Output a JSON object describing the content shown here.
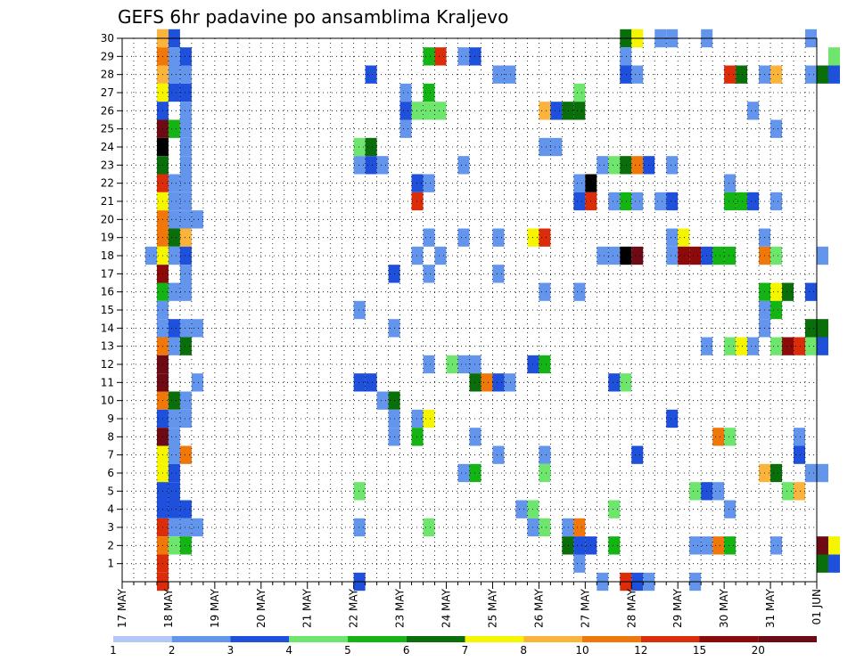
{
  "chart_data": {
    "type": "heatmap",
    "title": "GEFS 6hr padavine po ansamblima Kraljevo",
    "xlabel": "",
    "ylabel": "",
    "x_labels": [
      "17 MAY",
      "18 MAY",
      "19 MAY",
      "20 MAY",
      "21 MAY",
      "22 MAY",
      "23 MAY",
      "24 MAY",
      "25 MAY",
      "26 MAY",
      "27 MAY",
      "28 MAY",
      "29 MAY",
      "30 MAY",
      "31 MAY",
      "01 JUN"
    ],
    "x_range": [
      "2024-05-17T00:00",
      "2024-06-01T00:00"
    ],
    "time_step_hours": 6,
    "y_labels": [
      "1",
      "2",
      "3",
      "4",
      "5",
      "6",
      "7",
      "8",
      "9",
      "10",
      "11",
      "12",
      "13",
      "14",
      "15",
      "16",
      "17",
      "18",
      "19",
      "20",
      "21",
      "22",
      "23",
      "24",
      "25",
      "26",
      "27",
      "28",
      "29",
      "30"
    ],
    "ylim": [
      0,
      30
    ],
    "grid": true,
    "color_scale": {
      "levels": [
        "1",
        "2",
        "3",
        "4",
        "5",
        "6",
        "7",
        "8",
        "10",
        "12",
        "15",
        "20"
      ],
      "colors": [
        "#b4c8f5",
        "#6495ed",
        "#1e50dc",
        "#6ee66e",
        "#14b414",
        "#0a6e0a",
        "#f5f500",
        "#fab43c",
        "#f0780a",
        "#dc2d0a",
        "#8c0a0a",
        "#6e0a14"
      ]
    },
    "cells": [
      [
        "2024-05-17T18:00",
        30,
        7
      ],
      [
        "2024-05-17T18:00",
        29,
        8
      ],
      [
        "2024-05-17T18:00",
        28,
        7
      ],
      [
        "2024-05-17T18:00",
        27,
        6
      ],
      [
        "2024-05-17T18:00",
        26,
        2
      ],
      [
        "2024-05-17T18:00",
        25,
        11
      ],
      [
        "2024-05-17T18:00",
        24,
        12
      ],
      [
        "2024-05-17T18:00",
        23,
        5
      ],
      [
        "2024-05-17T18:00",
        22,
        9
      ],
      [
        "2024-05-17T18:00",
        21,
        6
      ],
      [
        "2024-05-17T18:00",
        20,
        8
      ],
      [
        "2024-05-17T18:00",
        19,
        8
      ],
      [
        "2024-05-17T18:00",
        18,
        6
      ],
      [
        "2024-05-17T18:00",
        17,
        10
      ],
      [
        "2024-05-17T18:00",
        16,
        4
      ],
      [
        "2024-05-17T18:00",
        15,
        1
      ],
      [
        "2024-05-17T18:00",
        14,
        1
      ],
      [
        "2024-05-17T18:00",
        13,
        8
      ],
      [
        "2024-05-17T18:00",
        12,
        11
      ],
      [
        "2024-05-17T18:00",
        11,
        11
      ],
      [
        "2024-05-17T18:00",
        10,
        8
      ],
      [
        "2024-05-17T18:00",
        9,
        2
      ],
      [
        "2024-05-17T18:00",
        8,
        11
      ],
      [
        "2024-05-17T18:00",
        7,
        6
      ],
      [
        "2024-05-17T18:00",
        6,
        6
      ],
      [
        "2024-05-17T18:00",
        5,
        2
      ],
      [
        "2024-05-17T18:00",
        4,
        2
      ],
      [
        "2024-05-17T18:00",
        3,
        9
      ],
      [
        "2024-05-17T18:00",
        2,
        8
      ],
      [
        "2024-05-17T18:00",
        1,
        9
      ],
      [
        "2024-05-17T18:00",
        0,
        9
      ],
      [
        "2024-05-17T12:00",
        18,
        1
      ],
      [
        "2024-05-18T00:00",
        30,
        2
      ],
      [
        "2024-05-18T00:00",
        29,
        1
      ],
      [
        "2024-05-18T00:00",
        28,
        1
      ],
      [
        "2024-05-18T00:00",
        27,
        2
      ],
      [
        "2024-05-18T00:00",
        25,
        4
      ],
      [
        "2024-05-18T00:00",
        22,
        1
      ],
      [
        "2024-05-18T00:00",
        21,
        1
      ],
      [
        "2024-05-18T00:00",
        20,
        1
      ],
      [
        "2024-05-18T00:00",
        19,
        5
      ],
      [
        "2024-05-18T00:00",
        18,
        1
      ],
      [
        "2024-05-18T00:00",
        16,
        1
      ],
      [
        "2024-05-18T00:00",
        14,
        2
      ],
      [
        "2024-05-18T00:00",
        13,
        1
      ],
      [
        "2024-05-18T00:00",
        10,
        5
      ],
      [
        "2024-05-18T00:00",
        9,
        1
      ],
      [
        "2024-05-18T00:00",
        8,
        1
      ],
      [
        "2024-05-18T00:00",
        7,
        1
      ],
      [
        "2024-05-18T00:00",
        6,
        2
      ],
      [
        "2024-05-18T00:00",
        5,
        2
      ],
      [
        "2024-05-18T00:00",
        4,
        2
      ],
      [
        "2024-05-18T00:00",
        3,
        1
      ],
      [
        "2024-05-18T00:00",
        2,
        3
      ],
      [
        "2024-05-18T06:00",
        29,
        2
      ],
      [
        "2024-05-18T06:00",
        28,
        1
      ],
      [
        "2024-05-18T06:00",
        27,
        2
      ],
      [
        "2024-05-18T06:00",
        26,
        1
      ],
      [
        "2024-05-18T06:00",
        25,
        1
      ],
      [
        "2024-05-18T06:00",
        24,
        1
      ],
      [
        "2024-05-18T06:00",
        23,
        1
      ],
      [
        "2024-05-18T06:00",
        22,
        1
      ],
      [
        "2024-05-18T06:00",
        21,
        1
      ],
      [
        "2024-05-18T06:00",
        20,
        1
      ],
      [
        "2024-05-18T06:00",
        19,
        7
      ],
      [
        "2024-05-18T06:00",
        18,
        2
      ],
      [
        "2024-05-18T06:00",
        17,
        1
      ],
      [
        "2024-05-18T06:00",
        16,
        1
      ],
      [
        "2024-05-18T06:00",
        14,
        1
      ],
      [
        "2024-05-18T06:00",
        13,
        5
      ],
      [
        "2024-05-18T06:00",
        10,
        1
      ],
      [
        "2024-05-18T06:00",
        9,
        1
      ],
      [
        "2024-05-18T06:00",
        7,
        8
      ],
      [
        "2024-05-18T06:00",
        4,
        2
      ],
      [
        "2024-05-18T06:00",
        3,
        1
      ],
      [
        "2024-05-18T06:00",
        2,
        4
      ],
      [
        "2024-05-18T12:00",
        20,
        1
      ],
      [
        "2024-05-18T12:00",
        14,
        1
      ],
      [
        "2024-05-18T12:00",
        11,
        1
      ],
      [
        "2024-05-18T12:00",
        3,
        1
      ],
      [
        "2024-05-22T00:00",
        24,
        3
      ],
      [
        "2024-05-22T00:00",
        23,
        1
      ],
      [
        "2024-05-22T00:00",
        15,
        1
      ],
      [
        "2024-05-22T00:00",
        11,
        2
      ],
      [
        "2024-05-22T00:00",
        5,
        3
      ],
      [
        "2024-05-22T00:00",
        3,
        1
      ],
      [
        "2024-05-22T00:00",
        0,
        2
      ],
      [
        "2024-05-22T06:00",
        28,
        2
      ],
      [
        "2024-05-22T06:00",
        24,
        5
      ],
      [
        "2024-05-22T06:00",
        23,
        2
      ],
      [
        "2024-05-22T06:00",
        11,
        2
      ],
      [
        "2024-05-22T12:00",
        23,
        1
      ],
      [
        "2024-05-22T12:00",
        10,
        1
      ],
      [
        "2024-05-22T18:00",
        17,
        2
      ],
      [
        "2024-05-22T18:00",
        14,
        1
      ],
      [
        "2024-05-22T18:00",
        10,
        5
      ],
      [
        "2024-05-22T18:00",
        9,
        1
      ],
      [
        "2024-05-22T18:00",
        8,
        1
      ],
      [
        "2024-05-23T00:00",
        27,
        1
      ],
      [
        "2024-05-23T00:00",
        26,
        2
      ],
      [
        "2024-05-23T00:00",
        25,
        1
      ],
      [
        "2024-05-23T06:00",
        26,
        3
      ],
      [
        "2024-05-23T06:00",
        22,
        2
      ],
      [
        "2024-05-23T06:00",
        21,
        9
      ],
      [
        "2024-05-23T06:00",
        18,
        1
      ],
      [
        "2024-05-23T06:00",
        9,
        1
      ],
      [
        "2024-05-23T06:00",
        8,
        4
      ],
      [
        "2024-05-23T12:00",
        29,
        4
      ],
      [
        "2024-05-23T12:00",
        27,
        4
      ],
      [
        "2024-05-23T12:00",
        26,
        3
      ],
      [
        "2024-05-23T12:00",
        22,
        1
      ],
      [
        "2024-05-23T12:00",
        19,
        1
      ],
      [
        "2024-05-23T12:00",
        17,
        1
      ],
      [
        "2024-05-23T12:00",
        12,
        1
      ],
      [
        "2024-05-23T12:00",
        9,
        6
      ],
      [
        "2024-05-23T12:00",
        3,
        3
      ],
      [
        "2024-05-23T18:00",
        29,
        9
      ],
      [
        "2024-05-23T18:00",
        26,
        3
      ],
      [
        "2024-05-23T18:00",
        18,
        1
      ],
      [
        "2024-05-24T00:00",
        12,
        3
      ],
      [
        "2024-05-24T06:00",
        29,
        1
      ],
      [
        "2024-05-24T06:00",
        23,
        1
      ],
      [
        "2024-05-24T06:00",
        19,
        1
      ],
      [
        "2024-05-24T06:00",
        12,
        1
      ],
      [
        "2024-05-24T06:00",
        6,
        1
      ],
      [
        "2024-05-24T12:00",
        29,
        2
      ],
      [
        "2024-05-24T12:00",
        12,
        1
      ],
      [
        "2024-05-24T12:00",
        11,
        5
      ],
      [
        "2024-05-24T12:00",
        8,
        1
      ],
      [
        "2024-05-24T12:00",
        6,
        4
      ],
      [
        "2024-05-24T18:00",
        11,
        8
      ],
      [
        "2024-05-25T00:00",
        28,
        1
      ],
      [
        "2024-05-25T00:00",
        19,
        1
      ],
      [
        "2024-05-25T00:00",
        17,
        1
      ],
      [
        "2024-05-25T00:00",
        11,
        2
      ],
      [
        "2024-05-25T00:00",
        7,
        1
      ],
      [
        "2024-05-25T06:00",
        28,
        1
      ],
      [
        "2024-05-25T06:00",
        11,
        1
      ],
      [
        "2024-05-25T12:00",
        4,
        1
      ],
      [
        "2024-05-25T18:00",
        19,
        6
      ],
      [
        "2024-05-25T18:00",
        12,
        2
      ],
      [
        "2024-05-25T18:00",
        4,
        3
      ],
      [
        "2024-05-25T18:00",
        3,
        1
      ],
      [
        "2024-05-26T00:00",
        24,
        1
      ],
      [
        "2024-05-26T00:00",
        19,
        9
      ],
      [
        "2024-05-26T00:00",
        16,
        1
      ],
      [
        "2024-05-26T00:00",
        12,
        4
      ],
      [
        "2024-05-26T00:00",
        7,
        1
      ],
      [
        "2024-05-26T00:00",
        6,
        3
      ],
      [
        "2024-05-26T00:00",
        3,
        3
      ],
      [
        "2024-05-26T00:00",
        26,
        7
      ],
      [
        "2024-05-26T06:00",
        26,
        2
      ],
      [
        "2024-05-26T06:00",
        24,
        1
      ],
      [
        "2024-05-26T12:00",
        26,
        5
      ],
      [
        "2024-05-26T12:00",
        3,
        1
      ],
      [
        "2024-05-26T12:00",
        2,
        5
      ],
      [
        "2024-05-26T18:00",
        27,
        3
      ],
      [
        "2024-05-26T18:00",
        26,
        5
      ],
      [
        "2024-05-26T18:00",
        22,
        1
      ],
      [
        "2024-05-26T18:00",
        21,
        2
      ],
      [
        "2024-05-26T18:00",
        16,
        1
      ],
      [
        "2024-05-26T18:00",
        3,
        8
      ],
      [
        "2024-05-26T18:00",
        2,
        2
      ],
      [
        "2024-05-26T18:00",
        1,
        1
      ],
      [
        "2024-05-27T00:00",
        22,
        12
      ],
      [
        "2024-05-27T00:00",
        21,
        9
      ],
      [
        "2024-05-27T00:00",
        2,
        2
      ],
      [
        "2024-05-27T06:00",
        23,
        1
      ],
      [
        "2024-05-27T06:00",
        18,
        1
      ],
      [
        "2024-05-27T06:00",
        0,
        1
      ],
      [
        "2024-05-27T12:00",
        23,
        3
      ],
      [
        "2024-05-27T12:00",
        18,
        1
      ],
      [
        "2024-05-27T12:00",
        21,
        1
      ],
      [
        "2024-05-27T12:00",
        11,
        2
      ],
      [
        "2024-05-27T12:00",
        4,
        3
      ],
      [
        "2024-05-27T12:00",
        2,
        4
      ],
      [
        "2024-05-27T18:00",
        30,
        5
      ],
      [
        "2024-05-27T18:00",
        29,
        1
      ],
      [
        "2024-05-27T18:00",
        28,
        2
      ],
      [
        "2024-05-27T18:00",
        23,
        5
      ],
      [
        "2024-05-27T18:00",
        21,
        4
      ],
      [
        "2024-05-27T18:00",
        18,
        12
      ],
      [
        "2024-05-27T18:00",
        11,
        3
      ],
      [
        "2024-05-27T18:00",
        0,
        9
      ],
      [
        "2024-05-28T00:00",
        30,
        6
      ],
      [
        "2024-05-28T00:00",
        28,
        1
      ],
      [
        "2024-05-28T00:00",
        23,
        8
      ],
      [
        "2024-05-28T00:00",
        21,
        1
      ],
      [
        "2024-05-28T00:00",
        18,
        11
      ],
      [
        "2024-05-28T00:00",
        7,
        2
      ],
      [
        "2024-05-28T00:00",
        0,
        2
      ],
      [
        "2024-05-28T06:00",
        23,
        2
      ],
      [
        "2024-05-28T06:00",
        0,
        1
      ],
      [
        "2024-05-28T12:00",
        30,
        1
      ],
      [
        "2024-05-28T12:00",
        21,
        1
      ],
      [
        "2024-05-28T18:00",
        30,
        1
      ],
      [
        "2024-05-28T18:00",
        23,
        1
      ],
      [
        "2024-05-28T18:00",
        21,
        2
      ],
      [
        "2024-05-28T18:00",
        19,
        1
      ],
      [
        "2024-05-28T18:00",
        18,
        1
      ],
      [
        "2024-05-28T18:00",
        9,
        2
      ],
      [
        "2024-05-29T00:00",
        19,
        6
      ],
      [
        "2024-05-29T00:00",
        18,
        10
      ],
      [
        "2024-05-29T06:00",
        18,
        10
      ],
      [
        "2024-05-29T06:00",
        5,
        3
      ],
      [
        "2024-05-29T06:00",
        2,
        1
      ],
      [
        "2024-05-29T06:00",
        0,
        1
      ],
      [
        "2024-05-29T12:00",
        30,
        1
      ],
      [
        "2024-05-29T12:00",
        18,
        2
      ],
      [
        "2024-05-29T12:00",
        13,
        1
      ],
      [
        "2024-05-29T12:00",
        5,
        2
      ],
      [
        "2024-05-29T12:00",
        2,
        1
      ],
      [
        "2024-05-29T18:00",
        18,
        4
      ],
      [
        "2024-05-29T18:00",
        5,
        1
      ],
      [
        "2024-05-29T18:00",
        8,
        8
      ],
      [
        "2024-05-29T18:00",
        2,
        8
      ],
      [
        "2024-05-30T00:00",
        28,
        9
      ],
      [
        "2024-05-30T00:00",
        22,
        1
      ],
      [
        "2024-05-30T00:00",
        21,
        4
      ],
      [
        "2024-05-30T00:00",
        18,
        4
      ],
      [
        "2024-05-30T00:00",
        13,
        3
      ],
      [
        "2024-05-30T00:00",
        8,
        3
      ],
      [
        "2024-05-30T00:00",
        4,
        1
      ],
      [
        "2024-05-30T00:00",
        2,
        4
      ],
      [
        "2024-05-30T06:00",
        28,
        5
      ],
      [
        "2024-05-30T06:00",
        21,
        4
      ],
      [
        "2024-05-30T06:00",
        13,
        6
      ],
      [
        "2024-05-30T12:00",
        26,
        1
      ],
      [
        "2024-05-30T12:00",
        21,
        2
      ],
      [
        "2024-05-30T12:00",
        13,
        1
      ],
      [
        "2024-05-30T18:00",
        28,
        1
      ],
      [
        "2024-05-30T18:00",
        19,
        1
      ],
      [
        "2024-05-30T18:00",
        18,
        8
      ],
      [
        "2024-05-30T18:00",
        16,
        4
      ],
      [
        "2024-05-30T18:00",
        15,
        1
      ],
      [
        "2024-05-30T18:00",
        14,
        1
      ],
      [
        "2024-05-30T18:00",
        6,
        7
      ],
      [
        "2024-05-31T00:00",
        28,
        7
      ],
      [
        "2024-05-31T00:00",
        25,
        1
      ],
      [
        "2024-05-31T00:00",
        21,
        1
      ],
      [
        "2024-05-31T00:00",
        18,
        3
      ],
      [
        "2024-05-31T00:00",
        16,
        6
      ],
      [
        "2024-05-31T00:00",
        15,
        4
      ],
      [
        "2024-05-31T00:00",
        13,
        3
      ],
      [
        "2024-05-31T00:00",
        6,
        5
      ],
      [
        "2024-05-31T00:00",
        2,
        1
      ],
      [
        "2024-05-31T06:00",
        16,
        5
      ],
      [
        "2024-05-31T06:00",
        13,
        10
      ],
      [
        "2024-05-31T06:00",
        5,
        3
      ],
      [
        "2024-05-31T12:00",
        13,
        9
      ],
      [
        "2024-05-31T12:00",
        8,
        1
      ],
      [
        "2024-05-31T12:00",
        7,
        2
      ],
      [
        "2024-05-31T12:00",
        5,
        7
      ],
      [
        "2024-05-31T18:00",
        30,
        1
      ],
      [
        "2024-05-31T18:00",
        28,
        1
      ],
      [
        "2024-05-31T18:00",
        16,
        2
      ],
      [
        "2024-05-31T18:00",
        14,
        5
      ],
      [
        "2024-05-31T18:00",
        13,
        3
      ],
      [
        "2024-05-31T18:00",
        6,
        1
      ],
      [
        "2024-06-01T00:00",
        28,
        5
      ],
      [
        "2024-06-01T00:00",
        18,
        1
      ],
      [
        "2024-06-01T00:00",
        14,
        5
      ],
      [
        "2024-06-01T00:00",
        13,
        2
      ],
      [
        "2024-06-01T00:00",
        6,
        1
      ],
      [
        "2024-06-01T00:00",
        2,
        11
      ],
      [
        "2024-06-01T00:00",
        1,
        5
      ],
      [
        "2024-06-01T06:00",
        29,
        3
      ],
      [
        "2024-06-01T06:00",
        28,
        2
      ],
      [
        "2024-06-01T06:00",
        2,
        6
      ],
      [
        "2024-06-01T06:00",
        1,
        2
      ]
    ]
  }
}
